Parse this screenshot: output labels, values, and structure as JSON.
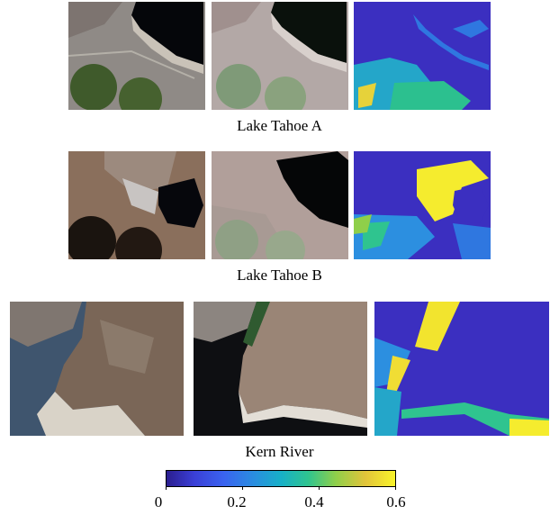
{
  "captions": {
    "row1": "Lake Tahoe A",
    "row2": "Lake Tahoe B",
    "row3": "Kern River"
  },
  "colorbar": {
    "ticks": [
      "0",
      "0.2",
      "0.4",
      "0.6"
    ],
    "range": [
      0,
      0.6
    ],
    "colormap": "parula"
  },
  "colors": {
    "low": "#3b2fc0",
    "mid": "#1fb1c9",
    "high": "#f9f42a",
    "water": "#0a0d14"
  }
}
